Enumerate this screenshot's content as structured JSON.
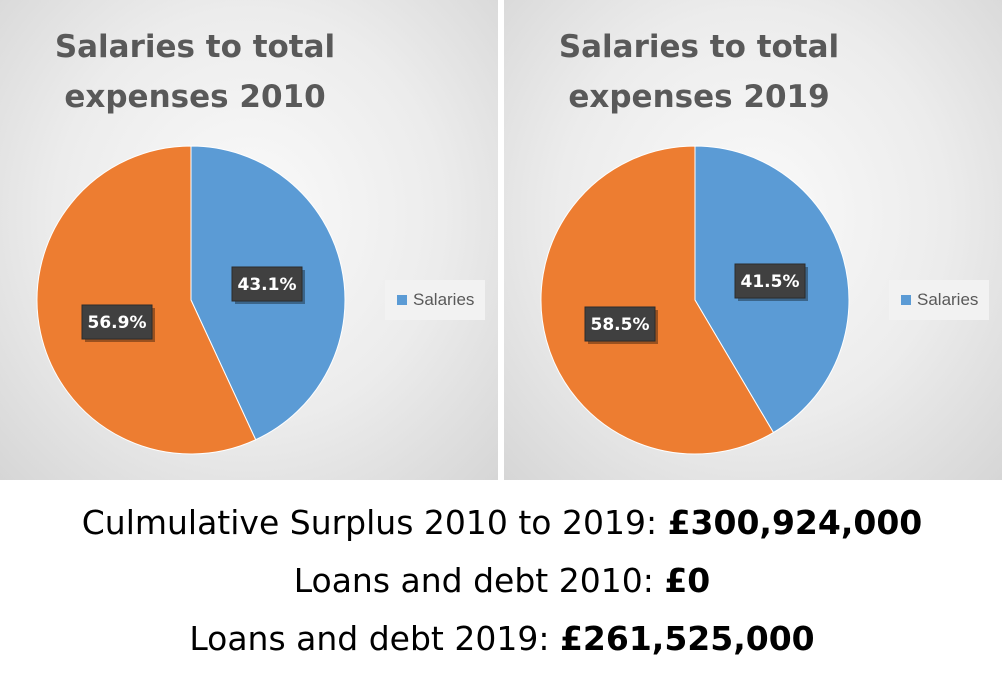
{
  "colors": {
    "salaries": "#5b9bd5",
    "other": "#ed7d31",
    "label_bg": "#404040"
  },
  "chart_data": [
    {
      "type": "pie",
      "title": "Salaries to total expenses 2010",
      "title_lines": [
        "Salaries to total",
        "expenses 2010"
      ],
      "slices": [
        {
          "name": "Salaries",
          "value": 43.1,
          "label": "43.1%",
          "color": "#5b9bd5"
        },
        {
          "name": "",
          "value": 56.9,
          "label": "56.9%",
          "color": "#ed7d31"
        }
      ],
      "legend": {
        "entries": [
          "Salaries"
        ],
        "placement": "right"
      }
    },
    {
      "type": "pie",
      "title": "Salaries to total expenses 2019",
      "title_lines": [
        "Salaries to total",
        "expenses 2019"
      ],
      "slices": [
        {
          "name": "Salaries",
          "value": 41.5,
          "label": "41.5%",
          "color": "#5b9bd5"
        },
        {
          "name": "",
          "value": 58.5,
          "label": "58.5%",
          "color": "#ed7d31"
        }
      ],
      "legend": {
        "entries": [
          "Salaries"
        ],
        "placement": "right"
      }
    }
  ],
  "summary": {
    "surplus_label": "Culmulative Surplus 2010 to 2019: ",
    "surplus_value": "£300,924,000",
    "debt2010_label": "Loans and debt 2010: ",
    "debt2010_value": "£0",
    "debt2019_label": "Loans and debt 2019: ",
    "debt2019_value": "£261,525,000"
  }
}
